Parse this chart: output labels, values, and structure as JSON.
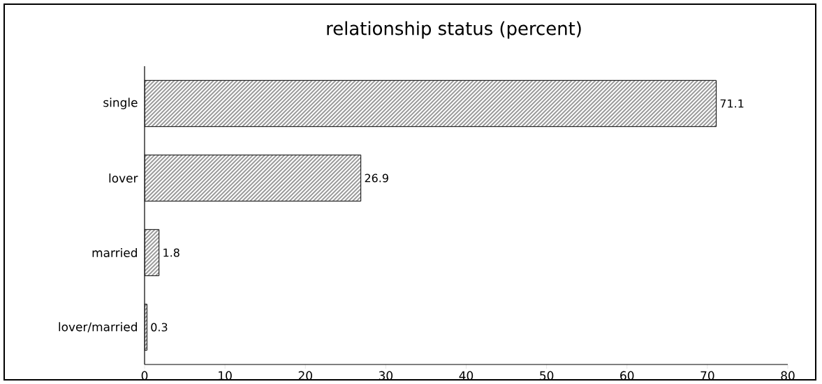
{
  "chart_data": {
    "type": "bar",
    "orientation": "horizontal",
    "title": "relationship status  (percent)",
    "categories": [
      "single",
      "lover",
      "married",
      "lover/married"
    ],
    "values": [
      71.1,
      26.9,
      1.8,
      0.3
    ],
    "color": "#000000",
    "xlim": [
      0,
      80
    ],
    "xticks": [
      0,
      10,
      20,
      30,
      40,
      50,
      60,
      70,
      80
    ],
    "data_labels": true
  }
}
